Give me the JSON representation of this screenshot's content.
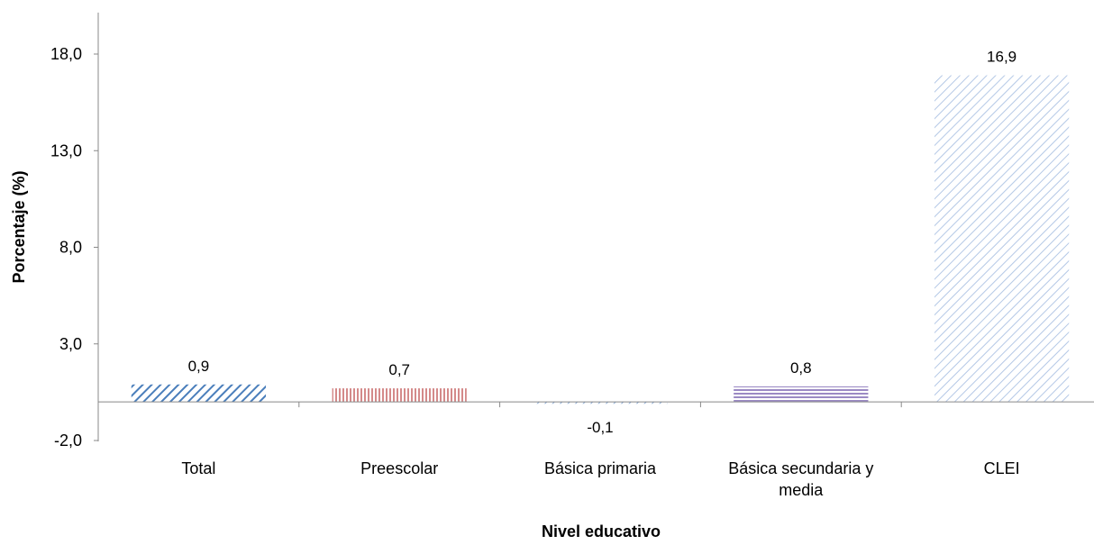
{
  "chart_data": {
    "type": "bar",
    "title": "",
    "xlabel": "Nivel educativo",
    "ylabel": "Porcentaje (%)",
    "ylim": [
      -2.0,
      18.0
    ],
    "yticks": [
      -2.0,
      3.0,
      8.0,
      13.0,
      18.0
    ],
    "ytick_labels": [
      "-2,0",
      "3,0",
      "8,0",
      "13,0",
      "18,0"
    ],
    "grid": false,
    "legend": "none",
    "categories": [
      [
        "Total"
      ],
      [
        "Preescolar"
      ],
      [
        "Básica primaria"
      ],
      [
        "Básica secundaria y",
        "media"
      ],
      [
        "CLEI"
      ]
    ],
    "values": [
      0.9,
      0.7,
      -0.1,
      0.8,
      16.9
    ],
    "data_labels": [
      "0,9",
      "0,7",
      "-0,1",
      "0,8",
      "16,9"
    ],
    "bar_styles": [
      {
        "pattern": "diagonal",
        "color": "#4a7ebb"
      },
      {
        "pattern": "vertical",
        "color": "#d48a8a"
      },
      {
        "pattern": "diagonal",
        "color": "#8aaad4"
      },
      {
        "pattern": "horizontal",
        "color": "#9b8ac4"
      },
      {
        "pattern": "diagonal",
        "color": "#b4c8e6"
      }
    ]
  }
}
